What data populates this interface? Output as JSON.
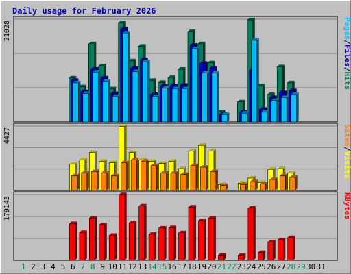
{
  "chart_data": {
    "type": "bar",
    "title": "Daily usage for February 2026",
    "days": [
      "1",
      "2",
      "3",
      "4",
      "5",
      "6",
      "7",
      "8",
      "9",
      "10",
      "11",
      "12",
      "13",
      "14",
      "15",
      "16",
      "17",
      "18",
      "19",
      "20",
      "21",
      "22",
      "23",
      "24",
      "25",
      "26",
      "27",
      "28",
      "29",
      "30",
      "31"
    ],
    "weekend_days": [
      1,
      7,
      8,
      14,
      15,
      21,
      22,
      28,
      29
    ],
    "panels": [
      {
        "id": "hits-files-pages",
        "max_label": "21028",
        "ymax": 21028,
        "legend": [
          "Pages",
          "/",
          "Files",
          "/",
          "Hits"
        ],
        "legend_colors": [
          "#00c0ff",
          "#000000",
          "#0000c0",
          "#000000",
          "#008060"
        ],
        "series": [
          {
            "name": "Hits",
            "color": "#008060",
            "values": [
              null,
              null,
              null,
              null,
              null,
              9000,
              7200,
              16000,
              11500,
              6800,
              20300,
              12500,
              15500,
              8500,
              8100,
              9100,
              10800,
              18500,
              16000,
              12100,
              2100,
              null,
              4100,
              20900,
              7400,
              5600,
              11300,
              8000,
              null,
              null,
              null
            ]
          },
          {
            "name": "Files",
            "color": "#0000c0",
            "values": [
              null,
              null,
              null,
              null,
              null,
              8500,
              6200,
              10800,
              9000,
              5800,
              19000,
              11000,
              12700,
              5600,
              7300,
              7400,
              7500,
              15700,
              12000,
              11000,
              1600,
              null,
              2000,
              10600,
              2600,
              5000,
              6000,
              6400,
              null,
              null,
              null
            ]
          },
          {
            "name": "Pages",
            "color": "#00c0ff",
            "values": [
              null,
              null,
              null,
              null,
              null,
              8000,
              5800,
              10200,
              8300,
              5200,
              18200,
              10300,
              12300,
              5200,
              6900,
              6800,
              6800,
              15000,
              10000,
              10000,
              1500,
              null,
              1800,
              16700,
              2000,
              4400,
              5000,
              5600,
              null,
              null,
              null
            ]
          }
        ]
      },
      {
        "id": "visits-sites",
        "max_label": "4427",
        "ymax": 4427,
        "legend": [
          "Sites",
          "/",
          "Visits"
        ],
        "legend_colors": [
          "#ff8000",
          "#000000",
          "#ffff00"
        ],
        "series": [
          {
            "name": "Visits",
            "color": "#ffff00",
            "values": [
              null,
              null,
              null,
              null,
              null,
              1800,
              2100,
              2600,
              2000,
              1900,
              4400,
              2600,
              2100,
              2000,
              1850,
              2000,
              1500,
              2700,
              3100,
              2700,
              400,
              null,
              500,
              850,
              550,
              1450,
              1500,
              1200,
              null,
              null,
              null
            ]
          },
          {
            "name": "Sites",
            "color": "#ff8000",
            "values": [
              null,
              null,
              null,
              null,
              null,
              1000,
              1200,
              1300,
              1200,
              1000,
              1900,
              2100,
              2000,
              1700,
              1200,
              1200,
              1100,
              1700,
              1600,
              1300,
              350,
              null,
              400,
              600,
              450,
              750,
              1000,
              900,
              null,
              null,
              null
            ]
          }
        ]
      },
      {
        "id": "kbytes",
        "max_label": "179143",
        "ymax": 179143,
        "legend": [
          "KBytes"
        ],
        "legend_colors": [
          "#ff0000"
        ],
        "series": [
          {
            "name": "KBytes",
            "color": "#ff0000",
            "values": [
              null,
              null,
              null,
              null,
              null,
              100000,
              76000,
              115000,
              97000,
              68000,
              179000,
              102000,
              148000,
              71000,
              88000,
              89000,
              75000,
              145000,
              108000,
              115000,
              14000,
              null,
              14000,
              142000,
              21000,
              50000,
              56000,
              62000,
              null,
              null,
              null
            ]
          }
        ]
      }
    ]
  }
}
